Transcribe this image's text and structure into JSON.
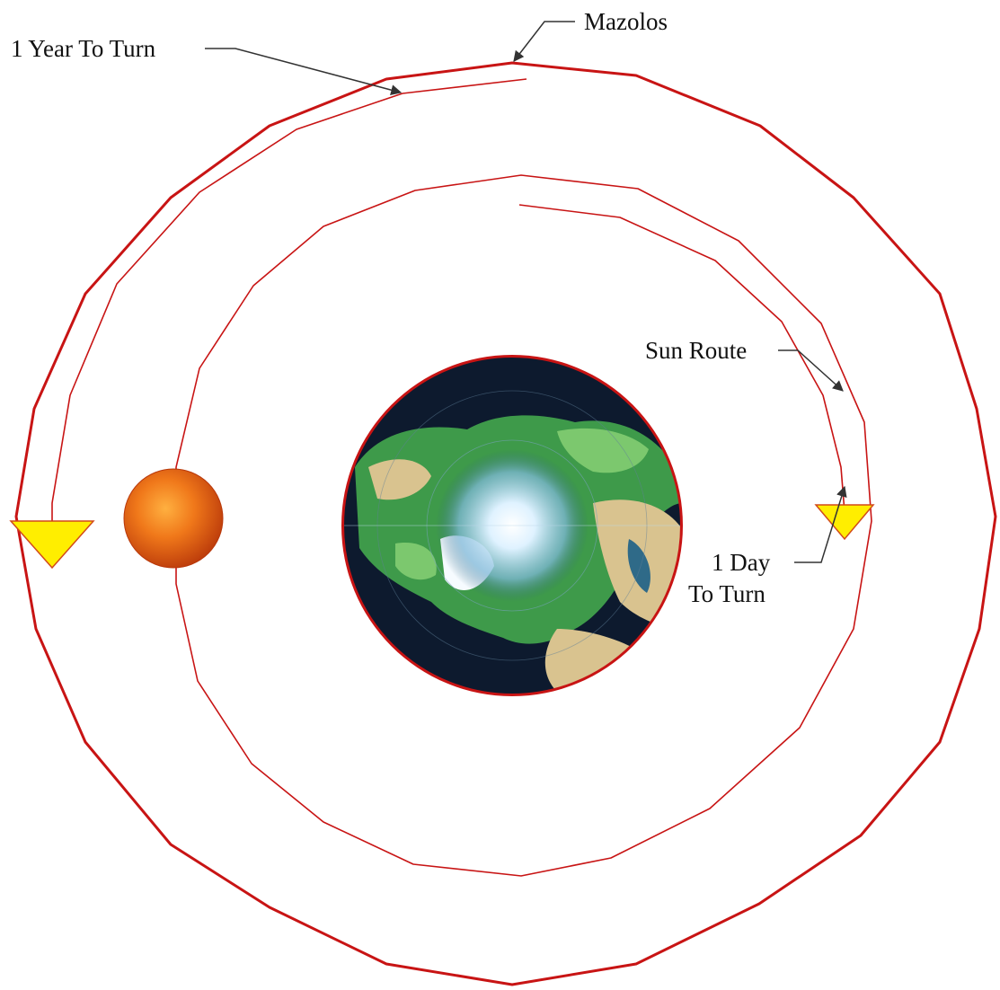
{
  "labels": {
    "mazolos": "Mazolos",
    "year_turn": "1 Year To Turn",
    "sun_route": "Sun Route",
    "day_turn_line1": "1 Day",
    "day_turn_line2": "To Turn"
  },
  "colors": {
    "orbit": "#c81414",
    "marker_fill": "#ffee00",
    "marker_stroke": "#d24a1a",
    "ocean": "#0d1a2e",
    "land_green": "#3e9a4a",
    "land_light": "#7cc86e",
    "ice": "#eaf6ff",
    "desert": "#d9c38f",
    "sun_core": "#f0781a",
    "sun_edge": "#b9380a"
  },
  "icons": [
    "sun-icon",
    "globe-icon",
    "triangle-marker-icon"
  ]
}
